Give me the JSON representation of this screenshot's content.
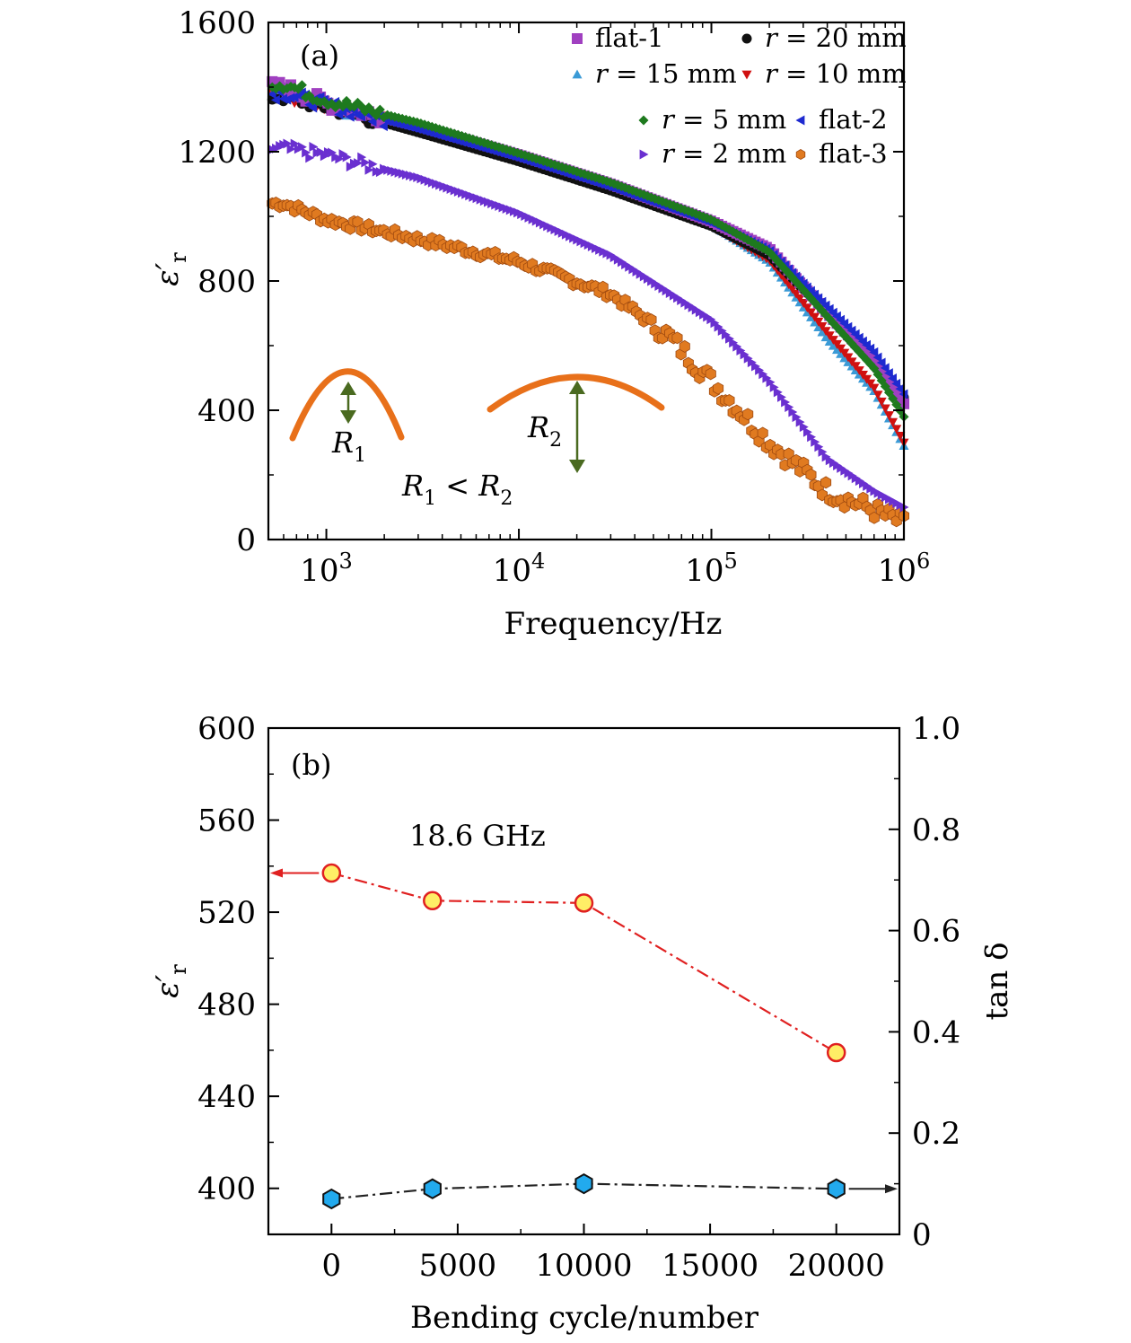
{
  "colors": {
    "flat-1": "#a040c0",
    "r20": "#111111",
    "r15": "#3a9ad6",
    "r10": "#d01010",
    "r5": "#1e7a1e",
    "flat-2": "#1e2ad0",
    "r2": "#6a30d0",
    "flat-3": "#e07a20",
    "bend": "#e8701a",
    "arrow": "#4a6a20",
    "eps_line": "#e02020",
    "eps_marker_fill": "#ffee66",
    "tan_line": "#222222",
    "tan_marker_fill": "#22aaee"
  },
  "chart_data": [
    {
      "type": "scatter",
      "panel_label": "(a)",
      "xlabel": "Frequency/Hz",
      "ylabel": "ε′r",
      "xscale": "log",
      "xlim": [
        500,
        1000000
      ],
      "ylim": [
        0,
        1600
      ],
      "x_ticks": [
        1000,
        10000,
        100000,
        1000000
      ],
      "x_tick_labels": [
        {
          "base": "10",
          "exp": "3"
        },
        {
          "base": "10",
          "exp": "4"
        },
        {
          "base": "10",
          "exp": "5"
        },
        {
          "base": "10",
          "exp": "6"
        }
      ],
      "y_ticks": [
        0,
        400,
        800,
        1200,
        1600
      ],
      "y_tick_labels": [
        "0",
        "400",
        "800",
        "1200",
        "1600"
      ],
      "legend_position": "top-right",
      "legend": [
        {
          "key": "flat-1",
          "label": "flat-1",
          "marker": "square"
        },
        {
          "key": "r20",
          "label": "r = 20 mm",
          "marker": "circle"
        },
        {
          "key": "r15",
          "label": "r = 15 mm",
          "marker": "triangle-up"
        },
        {
          "key": "r10",
          "label": "r = 10 mm",
          "marker": "triangle-down"
        },
        {
          "key": "r5",
          "label": "r = 5 mm",
          "marker": "diamond"
        },
        {
          "key": "flat-2",
          "label": "flat-2",
          "marker": "triangle-left"
        },
        {
          "key": "r2",
          "label": "r = 2 mm",
          "marker": "triangle-right"
        },
        {
          "key": "flat-3",
          "label": "flat-3",
          "marker": "hexagon"
        }
      ],
      "series": [
        {
          "key": "flat-1",
          "x": [
            600,
            1000,
            3000,
            10000,
            30000,
            100000,
            200000,
            400000,
            700000,
            1000000
          ],
          "y": [
            1400,
            1350,
            1280,
            1190,
            1100,
            985,
            900,
            700,
            550,
            420
          ]
        },
        {
          "key": "r20",
          "x": [
            600,
            1000,
            3000,
            10000,
            30000,
            100000,
            200000,
            400000,
            700000,
            1000000
          ],
          "y": [
            1370,
            1340,
            1260,
            1170,
            1080,
            970,
            880,
            700,
            560,
            440
          ]
        },
        {
          "key": "r15",
          "x": [
            600,
            1000,
            3000,
            10000,
            30000,
            100000,
            200000,
            400000,
            700000,
            1000000
          ],
          "y": [
            1390,
            1345,
            1270,
            1180,
            1090,
            975,
            860,
            620,
            460,
            290
          ]
        },
        {
          "key": "r10",
          "x": [
            600,
            1000,
            3000,
            10000,
            30000,
            100000,
            200000,
            400000,
            700000,
            1000000
          ],
          "y": [
            1380,
            1340,
            1265,
            1175,
            1085,
            970,
            865,
            640,
            470,
            300
          ]
        },
        {
          "key": "r5",
          "x": [
            600,
            1000,
            3000,
            10000,
            30000,
            100000,
            200000,
            400000,
            700000,
            1000000
          ],
          "y": [
            1410,
            1360,
            1290,
            1195,
            1105,
            990,
            890,
            690,
            530,
            380
          ]
        },
        {
          "key": "flat-2",
          "x": [
            600,
            1000,
            3000,
            10000,
            30000,
            100000,
            200000,
            400000,
            700000,
            1000000
          ],
          "y": [
            1380,
            1345,
            1270,
            1180,
            1090,
            980,
            895,
            720,
            580,
            450
          ]
        },
        {
          "key": "r2",
          "x": [
            600,
            1000,
            3000,
            10000,
            30000,
            100000,
            200000,
            400000,
            700000,
            1000000
          ],
          "y": [
            1210,
            1190,
            1120,
            1010,
            880,
            680,
            490,
            250,
            150,
            100
          ]
        },
        {
          "key": "flat-3",
          "x": [
            600,
            1000,
            3000,
            10000,
            30000,
            60000,
            100000,
            200000,
            400000,
            700000,
            1000000
          ],
          "y": [
            1040,
            990,
            930,
            860,
            760,
            630,
            490,
            300,
            150,
            90,
            50
          ]
        }
      ],
      "annotations": [
        {
          "text": "R",
          "sub": "1"
        },
        {
          "text": "R",
          "sub": "2"
        },
        {
          "text": "R",
          "sub1": "1",
          "op": " < ",
          "text2": "R",
          "sub2": "2"
        }
      ]
    },
    {
      "type": "line",
      "panel_label": "(b)",
      "annotation": "18.6 GHz",
      "xlabel": "Bending cycle/number",
      "ylabel_left": "ε′r",
      "ylabel_right": "tan δ",
      "xlim": [
        -2500,
        22500
      ],
      "ylim_left": [
        380,
        600
      ],
      "ylim_right": [
        0,
        1.0
      ],
      "x_ticks": [
        0,
        5000,
        10000,
        15000,
        20000
      ],
      "x_tick_labels": [
        "0",
        "5000",
        "10000",
        "15000",
        "20000"
      ],
      "y_ticks_left": [
        400,
        440,
        480,
        520,
        560,
        600
      ],
      "y_tick_labels_left": [
        "400",
        "440",
        "480",
        "520",
        "560",
        "600"
      ],
      "y_ticks_right": [
        0,
        0.2,
        0.4,
        0.6,
        0.8,
        1.0
      ],
      "y_tick_labels_right": [
        "0",
        "0.2",
        "0.4",
        "0.6",
        "0.8",
        "1.0"
      ],
      "categories": [
        0,
        4000,
        10000,
        20000
      ],
      "series": [
        {
          "axis": "left",
          "values": [
            537,
            525,
            524,
            459
          ]
        },
        {
          "axis": "right",
          "values": [
            0.07,
            0.09,
            0.1,
            0.09
          ]
        }
      ]
    }
  ]
}
